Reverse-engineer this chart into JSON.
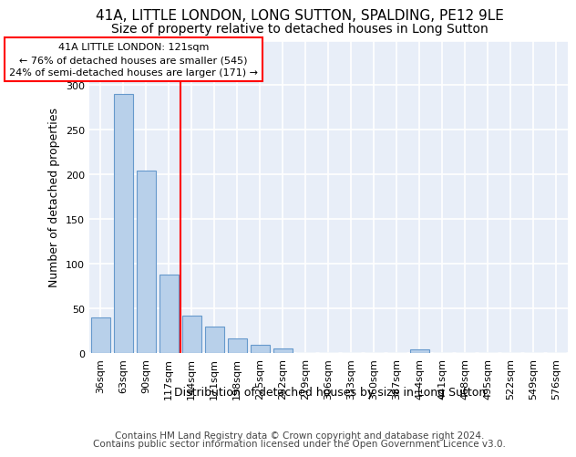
{
  "title_line1": "41A, LITTLE LONDON, LONG SUTTON, SPALDING, PE12 9LE",
  "title_line2": "Size of property relative to detached houses in Long Sutton",
  "xlabel": "Distribution of detached houses by size in Long Sutton",
  "ylabel": "Number of detached properties",
  "footer_line1": "Contains HM Land Registry data © Crown copyright and database right 2024.",
  "footer_line2": "Contains public sector information licensed under the Open Government Licence v3.0.",
  "annotation_title": "41A LITTLE LONDON: 121sqm",
  "annotation_line1": "← 76% of detached houses are smaller (545)",
  "annotation_line2": "24% of semi-detached houses are larger (171) →",
  "bar_labels": [
    "36sqm",
    "63sqm",
    "90sqm",
    "117sqm",
    "144sqm",
    "171sqm",
    "198sqm",
    "225sqm",
    "252sqm",
    "279sqm",
    "306sqm",
    "333sqm",
    "360sqm",
    "387sqm",
    "414sqm",
    "441sqm",
    "468sqm",
    "495sqm",
    "522sqm",
    "549sqm",
    "576sqm"
  ],
  "bar_values": [
    40,
    290,
    204,
    88,
    42,
    30,
    16,
    9,
    5,
    0,
    0,
    0,
    0,
    0,
    4,
    0,
    0,
    0,
    0,
    0,
    0
  ],
  "bar_color": "#b8d0ea",
  "bar_edge_color": "#6699cc",
  "red_line_x": 3.5,
  "ylim": [
    0,
    350
  ],
  "yticks": [
    0,
    50,
    100,
    150,
    200,
    250,
    300,
    350
  ],
  "bg_color": "#e8eef8",
  "grid_color": "#ffffff",
  "title_fontsize": 11,
  "subtitle_fontsize": 10,
  "ylabel_fontsize": 9,
  "xlabel_fontsize": 9,
  "tick_fontsize": 8,
  "footer_fontsize": 7.5,
  "annot_fontsize": 8
}
